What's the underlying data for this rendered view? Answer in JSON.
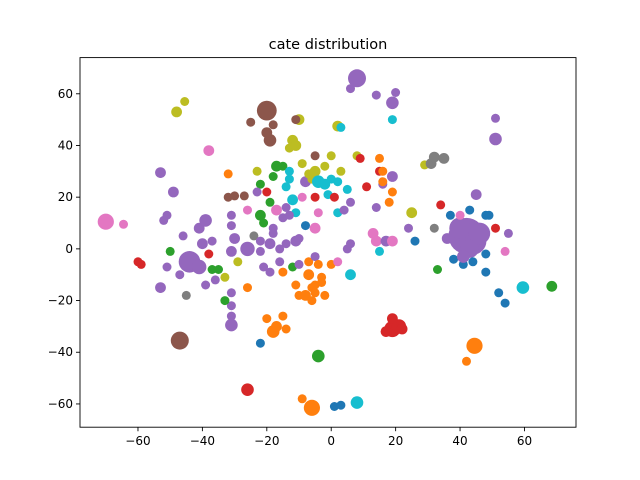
{
  "chart_data": {
    "type": "scatter",
    "title": "cate distribution",
    "xlabel": "",
    "ylabel": "",
    "xlim": [
      -78,
      76
    ],
    "ylim": [
      -69,
      74
    ],
    "xticks": [
      -60,
      -40,
      -20,
      0,
      20,
      40,
      60
    ],
    "yticks": [
      -60,
      -40,
      -20,
      0,
      20,
      40,
      60
    ],
    "grid": false,
    "legend": "none",
    "colors": {
      "blue": "#1f77b4",
      "orange": "#ff7f0e",
      "green": "#2ca02c",
      "red": "#d62728",
      "purple": "#9467bd",
      "brown": "#8c564b",
      "pink": "#e377c2",
      "gray": "#7f7f7f",
      "olive": "#bcbd22",
      "cyan": "#17becf"
    },
    "points": [
      {
        "x": -70,
        "y": 10.5,
        "s": 9,
        "c": "pink"
      },
      {
        "x": -64.5,
        "y": 9.5,
        "s": 5,
        "c": "pink"
      },
      {
        "x": -60,
        "y": -5,
        "s": 5,
        "c": "red"
      },
      {
        "x": -59,
        "y": -6,
        "s": 5,
        "c": "red"
      },
      {
        "x": -53,
        "y": 29.5,
        "s": 6,
        "c": "purple"
      },
      {
        "x": -52,
        "y": 11,
        "s": 5,
        "c": "purple"
      },
      {
        "x": -51,
        "y": 13,
        "s": 5,
        "c": "purple"
      },
      {
        "x": -49,
        "y": 22,
        "s": 6,
        "c": "purple"
      },
      {
        "x": -50,
        "y": -1,
        "s": 5,
        "c": "green"
      },
      {
        "x": -51,
        "y": -7,
        "s": 5,
        "c": "purple"
      },
      {
        "x": -53,
        "y": -15,
        "s": 6,
        "c": "purple"
      },
      {
        "x": -48,
        "y": 53,
        "s": 6,
        "c": "olive"
      },
      {
        "x": -45.5,
        "y": 57,
        "s": 5,
        "c": "olive"
      },
      {
        "x": -38,
        "y": 38,
        "s": 6,
        "c": "pink"
      },
      {
        "x": -46,
        "y": 5,
        "s": 5,
        "c": "purple"
      },
      {
        "x": -44,
        "y": -5,
        "s": 12,
        "c": "purple"
      },
      {
        "x": -41,
        "y": -7,
        "s": 8,
        "c": "purple"
      },
      {
        "x": -47,
        "y": -10,
        "s": 5,
        "c": "purple"
      },
      {
        "x": -45,
        "y": -18,
        "s": 5,
        "c": "gray"
      },
      {
        "x": -47,
        "y": -35.5,
        "s": 10,
        "c": "brown"
      },
      {
        "x": -41,
        "y": 8,
        "s": 6,
        "c": "purple"
      },
      {
        "x": -39,
        "y": 11,
        "s": 7,
        "c": "purple"
      },
      {
        "x": -40,
        "y": 2,
        "s": 6,
        "c": "purple"
      },
      {
        "x": -37,
        "y": 3,
        "s": 5,
        "c": "purple"
      },
      {
        "x": -38,
        "y": -2,
        "s": 5,
        "c": "red"
      },
      {
        "x": -37,
        "y": -8,
        "s": 5,
        "c": "green"
      },
      {
        "x": -35,
        "y": -8,
        "s": 5,
        "c": "green"
      },
      {
        "x": -36,
        "y": -12,
        "s": 5,
        "c": "purple"
      },
      {
        "x": -33,
        "y": -11,
        "s": 5,
        "c": "olive"
      },
      {
        "x": -39,
        "y": -14,
        "s": 5,
        "c": "purple"
      },
      {
        "x": -31,
        "y": -17,
        "s": 5,
        "c": "purple"
      },
      {
        "x": -31,
        "y": -22,
        "s": 5,
        "c": "purple"
      },
      {
        "x": -33,
        "y": -20,
        "s": 5,
        "c": "green"
      },
      {
        "x": -31,
        "y": -26,
        "s": 5,
        "c": "purple"
      },
      {
        "x": -31,
        "y": -29.5,
        "s": 7,
        "c": "purple"
      },
      {
        "x": -32,
        "y": 20,
        "s": 5,
        "c": "brown"
      },
      {
        "x": -30,
        "y": 20.5,
        "s": 5,
        "c": "brown"
      },
      {
        "x": -27,
        "y": 20.5,
        "s": 5,
        "c": "brown"
      },
      {
        "x": -32,
        "y": 29,
        "s": 5,
        "c": "orange"
      },
      {
        "x": -31,
        "y": 13,
        "s": 5,
        "c": "purple"
      },
      {
        "x": -31,
        "y": 9,
        "s": 5,
        "c": "purple"
      },
      {
        "x": -30,
        "y": 4,
        "s": 6,
        "c": "purple"
      },
      {
        "x": -31,
        "y": -1,
        "s": 6,
        "c": "purple"
      },
      {
        "x": -29,
        "y": -5,
        "s": 5,
        "c": "olive"
      },
      {
        "x": -26,
        "y": 0,
        "s": 8,
        "c": "purple"
      },
      {
        "x": -26,
        "y": 15,
        "s": 5,
        "c": "pink"
      },
      {
        "x": -26,
        "y": -15,
        "s": 5,
        "c": "orange"
      },
      {
        "x": -26,
        "y": -54.5,
        "s": 7,
        "c": "red"
      },
      {
        "x": -25,
        "y": 49,
        "s": 5,
        "c": "brown"
      },
      {
        "x": -24,
        "y": 5,
        "s": 5,
        "c": "gray"
      },
      {
        "x": -23,
        "y": 30,
        "s": 5,
        "c": "olive"
      },
      {
        "x": -22,
        "y": 25,
        "s": 5,
        "c": "green"
      },
      {
        "x": -23,
        "y": 22,
        "s": 5,
        "c": "purple"
      },
      {
        "x": -22,
        "y": 13,
        "s": 6,
        "c": "green"
      },
      {
        "x": -21,
        "y": 10,
        "s": 5,
        "c": "green"
      },
      {
        "x": -22,
        "y": 3,
        "s": 5,
        "c": "purple"
      },
      {
        "x": -22,
        "y": -1,
        "s": 5,
        "c": "purple"
      },
      {
        "x": -21,
        "y": -7,
        "s": 5,
        "c": "purple"
      },
      {
        "x": -22,
        "y": -36.5,
        "s": 5,
        "c": "blue"
      },
      {
        "x": -20,
        "y": 53.5,
        "s": 11,
        "c": "brown"
      },
      {
        "x": -20,
        "y": 45,
        "s": 6,
        "c": "brown"
      },
      {
        "x": -19,
        "y": 42,
        "s": 7,
        "c": "brown"
      },
      {
        "x": -18,
        "y": 48,
        "s": 5,
        "c": "brown"
      },
      {
        "x": -20,
        "y": 22,
        "s": 5,
        "c": "red"
      },
      {
        "x": -19,
        "y": 18,
        "s": 5,
        "c": "green"
      },
      {
        "x": -18,
        "y": 28,
        "s": 5,
        "c": "green"
      },
      {
        "x": -17,
        "y": 32,
        "s": 6,
        "c": "green"
      },
      {
        "x": -17,
        "y": 15,
        "s": 6,
        "c": "pink"
      },
      {
        "x": -18,
        "y": 8,
        "s": 5,
        "c": "purple"
      },
      {
        "x": -18,
        "y": 6,
        "s": 5,
        "c": "purple"
      },
      {
        "x": -19,
        "y": 2,
        "s": 6,
        "c": "purple"
      },
      {
        "x": -19,
        "y": -9,
        "s": 5,
        "c": "purple"
      },
      {
        "x": -20,
        "y": -27,
        "s": 5,
        "c": "orange"
      },
      {
        "x": -18,
        "y": -32,
        "s": 7,
        "c": "orange"
      },
      {
        "x": -17,
        "y": -30,
        "s": 6,
        "c": "orange"
      },
      {
        "x": -15,
        "y": -26,
        "s": 5,
        "c": "orange"
      },
      {
        "x": -14,
        "y": -31,
        "s": 5,
        "c": "orange"
      },
      {
        "x": -15,
        "y": 32,
        "s": 5,
        "c": "green"
      },
      {
        "x": -14,
        "y": 24,
        "s": 5,
        "c": "cyan"
      },
      {
        "x": -14,
        "y": 16,
        "s": 5,
        "c": "purple"
      },
      {
        "x": -15,
        "y": 12,
        "s": 5,
        "c": "purple"
      },
      {
        "x": -14,
        "y": 2,
        "s": 5,
        "c": "purple"
      },
      {
        "x": -16,
        "y": 0,
        "s": 5,
        "c": "purple"
      },
      {
        "x": -16,
        "y": -5,
        "s": 5,
        "c": "purple"
      },
      {
        "x": -15,
        "y": -9,
        "s": 5,
        "c": "orange"
      },
      {
        "x": -13,
        "y": 39,
        "s": 5,
        "c": "olive"
      },
      {
        "x": -12,
        "y": 42,
        "s": 6,
        "c": "olive"
      },
      {
        "x": -11,
        "y": 40,
        "s": 6,
        "c": "olive"
      },
      {
        "x": -10,
        "y": 50,
        "s": 6,
        "c": "olive"
      },
      {
        "x": -11,
        "y": 50,
        "s": 5,
        "c": "brown"
      },
      {
        "x": -13,
        "y": 30,
        "s": 5,
        "c": "cyan"
      },
      {
        "x": -13,
        "y": 27,
        "s": 5,
        "c": "cyan"
      },
      {
        "x": -12,
        "y": 19,
        "s": 6,
        "c": "cyan"
      },
      {
        "x": -11,
        "y": 14,
        "s": 5,
        "c": "cyan"
      },
      {
        "x": -13,
        "y": 13,
        "s": 5,
        "c": "purple"
      },
      {
        "x": -11,
        "y": 3,
        "s": 6,
        "c": "purple"
      },
      {
        "x": -10,
        "y": 4,
        "s": 5,
        "c": "purple"
      },
      {
        "x": -12,
        "y": -7,
        "s": 5,
        "c": "green"
      },
      {
        "x": -10,
        "y": -6,
        "s": 5,
        "c": "purple"
      },
      {
        "x": -11,
        "y": -14,
        "s": 5,
        "c": "orange"
      },
      {
        "x": -10,
        "y": -18,
        "s": 5,
        "c": "orange"
      },
      {
        "x": -8,
        "y": -18,
        "s": 6,
        "c": "orange"
      },
      {
        "x": -6,
        "y": -20,
        "s": 5,
        "c": "orange"
      },
      {
        "x": -9,
        "y": -58,
        "s": 5,
        "c": "orange"
      },
      {
        "x": -6,
        "y": -61.5,
        "s": 9,
        "c": "orange"
      },
      {
        "x": -9,
        "y": 33,
        "s": 5,
        "c": "olive"
      },
      {
        "x": -8,
        "y": 26,
        "s": 6,
        "c": "purple"
      },
      {
        "x": -9,
        "y": 20,
        "s": 5,
        "c": "pink"
      },
      {
        "x": -8,
        "y": 9,
        "s": 5,
        "c": "blue"
      },
      {
        "x": -7,
        "y": -5,
        "s": 5,
        "c": "orange"
      },
      {
        "x": -7,
        "y": -10,
        "s": 6,
        "c": "orange"
      },
      {
        "x": -6,
        "y": -15,
        "s": 5,
        "c": "orange"
      },
      {
        "x": -5,
        "y": -17,
        "s": 5,
        "c": "orange"
      },
      {
        "x": -5,
        "y": -14,
        "s": 5,
        "c": "orange"
      },
      {
        "x": -7,
        "y": 29,
        "s": 5,
        "c": "olive"
      },
      {
        "x": -6,
        "y": 27,
        "s": 5,
        "c": "olive"
      },
      {
        "x": -5,
        "y": 36,
        "s": 5,
        "c": "brown"
      },
      {
        "x": -5,
        "y": 30,
        "s": 6,
        "c": "olive"
      },
      {
        "x": -4,
        "y": 26,
        "s": 7,
        "c": "cyan"
      },
      {
        "x": -4,
        "y": 14,
        "s": 5,
        "c": "pink"
      },
      {
        "x": -5,
        "y": 20,
        "s": 5,
        "c": "red"
      },
      {
        "x": -5,
        "y": 8,
        "s": 6,
        "c": "pink"
      },
      {
        "x": -5,
        "y": -3,
        "s": 5,
        "c": "purple"
      },
      {
        "x": -4,
        "y": -6,
        "s": 5,
        "c": "orange"
      },
      {
        "x": -4,
        "y": -41.5,
        "s": 7,
        "c": "green"
      },
      {
        "x": -3,
        "y": -11,
        "s": 5,
        "c": "orange"
      },
      {
        "x": -3,
        "y": -13,
        "s": 5,
        "c": "orange"
      },
      {
        "x": -2,
        "y": 32,
        "s": 5,
        "c": "olive"
      },
      {
        "x": -2,
        "y": 25,
        "s": 6,
        "c": "cyan"
      },
      {
        "x": -1,
        "y": 21,
        "s": 5,
        "c": "cyan"
      },
      {
        "x": 0,
        "y": 27,
        "s": 5,
        "c": "cyan"
      },
      {
        "x": 0,
        "y": 36,
        "s": 5,
        "c": "olive"
      },
      {
        "x": -2,
        "y": -18,
        "s": 5,
        "c": "orange"
      },
      {
        "x": 0,
        "y": -6,
        "s": 5,
        "c": "orange"
      },
      {
        "x": 2,
        "y": -5,
        "s": 5,
        "c": "pink"
      },
      {
        "x": 2,
        "y": 47.5,
        "s": 6,
        "c": "olive"
      },
      {
        "x": 3,
        "y": 47,
        "s": 5,
        "c": "cyan"
      },
      {
        "x": 1,
        "y": 20,
        "s": 5,
        "c": "red"
      },
      {
        "x": 2,
        "y": 26,
        "s": 5,
        "c": "cyan"
      },
      {
        "x": 3,
        "y": 30,
        "s": 5,
        "c": "olive"
      },
      {
        "x": 2,
        "y": 14,
        "s": 5,
        "c": "cyan"
      },
      {
        "x": 4,
        "y": 15,
        "s": 5,
        "c": "purple"
      },
      {
        "x": 5,
        "y": 23,
        "s": 5,
        "c": "cyan"
      },
      {
        "x": 6,
        "y": 18,
        "s": 5,
        "c": "purple"
      },
      {
        "x": 5,
        "y": 0,
        "s": 5,
        "c": "purple"
      },
      {
        "x": 6,
        "y": 2,
        "s": 5,
        "c": "purple"
      },
      {
        "x": 6,
        "y": -10,
        "s": 6,
        "c": "cyan"
      },
      {
        "x": 1,
        "y": -61,
        "s": 5,
        "c": "blue"
      },
      {
        "x": 3,
        "y": -60.5,
        "s": 5,
        "c": "blue"
      },
      {
        "x": 8,
        "y": -59.5,
        "s": 7,
        "c": "cyan"
      },
      {
        "x": 6,
        "y": 62,
        "s": 5,
        "c": "purple"
      },
      {
        "x": 8,
        "y": 66,
        "s": 10,
        "c": "purple"
      },
      {
        "x": 8,
        "y": 36,
        "s": 5,
        "c": "olive"
      },
      {
        "x": 9,
        "y": 35,
        "s": 5,
        "c": "red"
      },
      {
        "x": 11,
        "y": 24,
        "s": 5,
        "c": "red"
      },
      {
        "x": 14,
        "y": 16,
        "s": 5,
        "c": "purple"
      },
      {
        "x": 13,
        "y": 6,
        "s": 6,
        "c": "pink"
      },
      {
        "x": 14,
        "y": 3,
        "s": 6,
        "c": "pink"
      },
      {
        "x": 15,
        "y": -1,
        "s": 5,
        "c": "cyan"
      },
      {
        "x": 14,
        "y": 59.5,
        "s": 5,
        "c": "purple"
      },
      {
        "x": 15,
        "y": 35,
        "s": 5,
        "c": "orange"
      },
      {
        "x": 15,
        "y": 30,
        "s": 5,
        "c": "red"
      },
      {
        "x": 16,
        "y": 25,
        "s": 5,
        "c": "purple"
      },
      {
        "x": 16,
        "y": 30,
        "s": 5,
        "c": "orange"
      },
      {
        "x": 16,
        "y": 26,
        "s": 5,
        "c": "orange"
      },
      {
        "x": 17,
        "y": 3,
        "s": 6,
        "c": "purple"
      },
      {
        "x": 19,
        "y": 3,
        "s": 6,
        "c": "pink"
      },
      {
        "x": 18,
        "y": 18,
        "s": 5,
        "c": "orange"
      },
      {
        "x": 19,
        "y": 50,
        "s": 5,
        "c": "cyan"
      },
      {
        "x": 19,
        "y": 56.5,
        "s": 7,
        "c": "purple"
      },
      {
        "x": 20,
        "y": 60.5,
        "s": 5,
        "c": "purple"
      },
      {
        "x": 19,
        "y": 28,
        "s": 6,
        "c": "purple"
      },
      {
        "x": 19,
        "y": 22,
        "s": 5,
        "c": "orange"
      },
      {
        "x": 19,
        "y": -31,
        "s": 9,
        "c": "red"
      },
      {
        "x": 21,
        "y": -30,
        "s": 8,
        "c": "red"
      },
      {
        "x": 19,
        "y": -27,
        "s": 6,
        "c": "red"
      },
      {
        "x": 22,
        "y": -31,
        "s": 6,
        "c": "red"
      },
      {
        "x": 17,
        "y": -32,
        "s": 6,
        "c": "red"
      },
      {
        "x": 24,
        "y": 8,
        "s": 5,
        "c": "purple"
      },
      {
        "x": 25,
        "y": 14,
        "s": 6,
        "c": "olive"
      },
      {
        "x": 26,
        "y": 3,
        "s": 5,
        "c": "blue"
      },
      {
        "x": 29,
        "y": 32.5,
        "s": 5,
        "c": "olive"
      },
      {
        "x": 31,
        "y": 33,
        "s": 6,
        "c": "gray"
      },
      {
        "x": 32,
        "y": 35.5,
        "s": 6,
        "c": "gray"
      },
      {
        "x": 35,
        "y": 35,
        "s": 6,
        "c": "gray"
      },
      {
        "x": 32,
        "y": 8,
        "s": 5,
        "c": "gray"
      },
      {
        "x": 33,
        "y": -8,
        "s": 5,
        "c": "green"
      },
      {
        "x": 34,
        "y": 17,
        "s": 5,
        "c": "red"
      },
      {
        "x": 36,
        "y": 4,
        "s": 6,
        "c": "purple"
      },
      {
        "x": 37,
        "y": 13,
        "s": 5,
        "c": "blue"
      },
      {
        "x": 38,
        "y": -4,
        "s": 5,
        "c": "blue"
      },
      {
        "x": 41,
        "y": -6,
        "s": 5,
        "c": "blue"
      },
      {
        "x": 42,
        "y": 5,
        "s": 20,
        "c": "purple"
      },
      {
        "x": 44,
        "y": 3,
        "s": 15,
        "c": "purple"
      },
      {
        "x": 40,
        "y": 8,
        "s": 12,
        "c": "purple"
      },
      {
        "x": 46,
        "y": 6,
        "s": 12,
        "c": "purple"
      },
      {
        "x": 43,
        "y": 0,
        "s": 10,
        "c": "purple"
      },
      {
        "x": 41,
        "y": -3,
        "s": 7,
        "c": "purple"
      },
      {
        "x": 40,
        "y": 13,
        "s": 5,
        "c": "pink"
      },
      {
        "x": 43,
        "y": 15,
        "s": 5,
        "c": "blue"
      },
      {
        "x": 45,
        "y": 21,
        "s": 6,
        "c": "purple"
      },
      {
        "x": 44,
        "y": -5,
        "s": 5,
        "c": "blue"
      },
      {
        "x": 48,
        "y": 13,
        "s": 5,
        "c": "blue"
      },
      {
        "x": 51,
        "y": 8,
        "s": 5,
        "c": "red"
      },
      {
        "x": 48,
        "y": -2,
        "s": 5,
        "c": "blue"
      },
      {
        "x": 48,
        "y": -9,
        "s": 5,
        "c": "blue"
      },
      {
        "x": 49,
        "y": 13,
        "s": 5,
        "c": "blue"
      },
      {
        "x": 44.5,
        "y": -37.5,
        "s": 9,
        "c": "orange"
      },
      {
        "x": 42,
        "y": -43.5,
        "s": 5,
        "c": "orange"
      },
      {
        "x": 51,
        "y": 42.5,
        "s": 7,
        "c": "purple"
      },
      {
        "x": 51,
        "y": 50.5,
        "s": 5,
        "c": "purple"
      },
      {
        "x": 52,
        "y": -17,
        "s": 5,
        "c": "blue"
      },
      {
        "x": 54,
        "y": -21,
        "s": 5,
        "c": "blue"
      },
      {
        "x": 55,
        "y": 6,
        "s": 5,
        "c": "purple"
      },
      {
        "x": 54,
        "y": -1,
        "s": 5,
        "c": "pink"
      },
      {
        "x": 59.5,
        "y": -15,
        "s": 7,
        "c": "cyan"
      },
      {
        "x": 68.5,
        "y": -14.5,
        "s": 6,
        "c": "green"
      }
    ]
  }
}
